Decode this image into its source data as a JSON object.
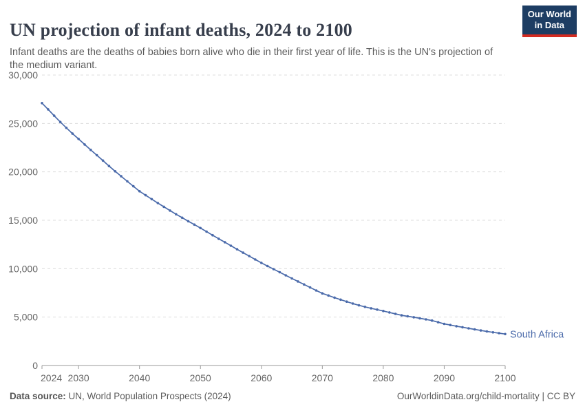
{
  "header": {
    "title": "UN projection of infant deaths, 2024 to 2100",
    "subtitle": "Infant deaths are the deaths of babies born alive who die in their first year of life. This is the UN's projection of the medium variant."
  },
  "logo": {
    "line1": "Our World",
    "line2": "in Data",
    "bg_color": "#1d3d63",
    "stripe_color": "#d42b21"
  },
  "chart_data": {
    "type": "line",
    "title": "UN projection of infant deaths, 2024 to 2100",
    "entity": "South Africa",
    "line_color": "#4a6aaa",
    "gridline_color": "#dcdcdc",
    "axis_color": "#9a9a9a",
    "tick_label_color": "#666666",
    "grid": "horizontal-dashed",
    "legend_position": "end-of-line-label",
    "xlim": [
      2024,
      2100
    ],
    "ylim": [
      0,
      30000
    ],
    "x_start": 2024,
    "x_step": 1,
    "x_ticks": [
      2024,
      2030,
      2040,
      2050,
      2060,
      2070,
      2080,
      2090,
      2100
    ],
    "y_ticks": [
      0,
      5000,
      10000,
      15000,
      20000,
      25000,
      30000
    ],
    "y_tick_labels": [
      "0",
      "5,000",
      "10,000",
      "15,000",
      "20,000",
      "25,000",
      "30,000"
    ],
    "xlabel": "",
    "ylabel": "",
    "series": [
      {
        "name": "South Africa",
        "values": [
          27100,
          26450,
          25800,
          25150,
          24550,
          23950,
          23400,
          22830,
          22270,
          21720,
          21160,
          20600,
          20060,
          19540,
          19020,
          18510,
          18000,
          17590,
          17180,
          16780,
          16390,
          16000,
          15620,
          15260,
          14900,
          14550,
          14200,
          13830,
          13460,
          13090,
          12730,
          12370,
          12010,
          11650,
          11300,
          10950,
          10600,
          10270,
          9950,
          9630,
          9310,
          8990,
          8680,
          8370,
          8060,
          7750,
          7450,
          7230,
          7010,
          6800,
          6600,
          6400,
          6210,
          6060,
          5910,
          5770,
          5630,
          5480,
          5330,
          5180,
          5080,
          4980,
          4880,
          4760,
          4640,
          4470,
          4300,
          4180,
          4060,
          3950,
          3840,
          3730,
          3620,
          3520,
          3430,
          3340,
          3250
        ]
      }
    ]
  },
  "footer": {
    "source_label": "Data source:",
    "source_text": " UN, World Population Prospects (2024)",
    "right_text": "OurWorldinData.org/child-mortality | CC BY"
  }
}
